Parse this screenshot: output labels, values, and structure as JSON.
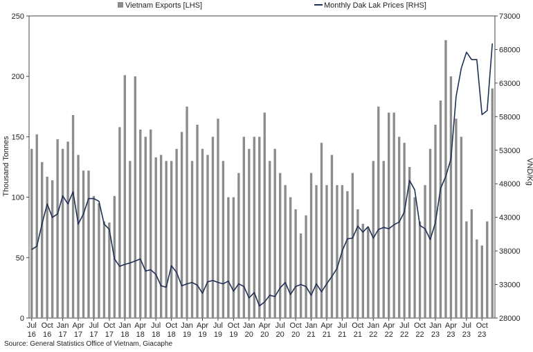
{
  "chart_data": {
    "type": "bar+line",
    "legend": {
      "placement": "top-center",
      "bar_label": "Vietnam Exports [LHS]",
      "line_label": "Monthly Dak Lak Prices [RHS]"
    },
    "y_left": {
      "label": "Thousand Tonnes",
      "min": 0,
      "max": 250,
      "step": 50,
      "ticks": [
        "0",
        "50",
        "100",
        "150",
        "200",
        "250"
      ]
    },
    "y_right": {
      "label": "VND/Kg",
      "min": 28000,
      "max": 73000,
      "step": 5000,
      "ticks": [
        "28000",
        "33000",
        "38000",
        "43000",
        "48000",
        "53000",
        "58000",
        "63000",
        "68000",
        "73000"
      ]
    },
    "x_ticks": [
      {
        "index": 0,
        "month": "Jul",
        "year": "16"
      },
      {
        "index": 3,
        "month": "Oct",
        "year": "16"
      },
      {
        "index": 6,
        "month": "Jan",
        "year": "17"
      },
      {
        "index": 9,
        "month": "Apr",
        "year": "17"
      },
      {
        "index": 12,
        "month": "Jul",
        "year": "17"
      },
      {
        "index": 15,
        "month": "Oct",
        "year": "17"
      },
      {
        "index": 18,
        "month": "Jan",
        "year": "18"
      },
      {
        "index": 21,
        "month": "Apr",
        "year": "18"
      },
      {
        "index": 24,
        "month": "Jul",
        "year": "18"
      },
      {
        "index": 27,
        "month": "Oct",
        "year": "18"
      },
      {
        "index": 30,
        "month": "Jan",
        "year": "19"
      },
      {
        "index": 33,
        "month": "Apr",
        "year": "19"
      },
      {
        "index": 36,
        "month": "Jul",
        "year": "19"
      },
      {
        "index": 39,
        "month": "Oct",
        "year": "19"
      },
      {
        "index": 42,
        "month": "Jan",
        "year": "20"
      },
      {
        "index": 45,
        "month": "Apr",
        "year": "20"
      },
      {
        "index": 48,
        "month": "Jul",
        "year": "20"
      },
      {
        "index": 51,
        "month": "Oct",
        "year": "20"
      },
      {
        "index": 54,
        "month": "Jan",
        "year": "21"
      },
      {
        "index": 57,
        "month": "Apr",
        "year": "21"
      },
      {
        "index": 60,
        "month": "Jul",
        "year": "21"
      },
      {
        "index": 63,
        "month": "Oct",
        "year": "21"
      },
      {
        "index": 66,
        "month": "Jan",
        "year": "22"
      },
      {
        "index": 69,
        "month": "Apr",
        "year": "22"
      },
      {
        "index": 72,
        "month": "Jul",
        "year": "22"
      },
      {
        "index": 75,
        "month": "Oct",
        "year": "22"
      },
      {
        "index": 78,
        "month": "Jan",
        "year": "23"
      },
      {
        "index": 81,
        "month": "Apr",
        "year": "23"
      },
      {
        "index": 84,
        "month": "Jul",
        "year": "23"
      },
      {
        "index": 87,
        "month": "Oct",
        "year": "23"
      }
    ],
    "series": [
      {
        "name": "Vietnam Exports [LHS]",
        "axis": "left",
        "kind": "bar",
        "color": "#8c8c8c",
        "values": [
          140,
          152,
          129,
          117,
          114,
          148,
          140,
          146,
          168,
          135,
          122,
          122,
          101,
          95,
          80,
          79,
          101,
          158,
          201,
          130,
          200,
          156,
          150,
          156,
          133,
          135,
          130,
          130,
          140,
          154,
          175,
          130,
          160,
          140,
          135,
          150,
          165,
          130,
          100,
          100,
          120,
          150,
          140,
          150,
          150,
          170,
          130,
          140,
          120,
          110,
          100,
          90,
          70,
          85,
          120,
          110,
          145,
          110,
          135,
          110,
          110,
          105,
          120,
          90,
          78,
          75,
          130,
          175,
          130,
          170,
          170,
          150,
          145,
          125,
          100,
          80,
          110,
          140,
          160,
          180,
          230,
          200,
          165,
          150,
          80,
          90,
          65,
          60,
          80,
          190
        ]
      },
      {
        "name": "Monthly Dak Lak Prices [RHS]",
        "axis": "right",
        "kind": "line",
        "color": "#1f2f57",
        "values": [
          38200,
          38700,
          42000,
          45000,
          43000,
          43500,
          46200,
          45000,
          46800,
          42000,
          43500,
          45800,
          45800,
          45400,
          42000,
          41200,
          36800,
          35700,
          36000,
          36200,
          36500,
          36800,
          35000,
          35200,
          34500,
          32800,
          32600,
          35800,
          34800,
          32800,
          33100,
          33300,
          32900,
          31700,
          33400,
          33600,
          33300,
          33100,
          33500,
          32000,
          33100,
          32700,
          31000,
          31800,
          29800,
          30400,
          31400,
          31200,
          32500,
          33300,
          31500,
          32700,
          33000,
          32700,
          31400,
          33100,
          31900,
          33100,
          34200,
          35400,
          38000,
          39800,
          39900,
          41700,
          40800,
          41600,
          39900,
          41200,
          41500,
          41300,
          41900,
          42300,
          43800,
          48500,
          47100,
          41800,
          41300,
          39700,
          42200,
          47300,
          49100,
          51700,
          61000,
          65200,
          67600,
          66500,
          66500,
          58300,
          58900,
          68900
        ]
      }
    ]
  },
  "source_text": "Source: General Statistics Office of Vietnam, Giacaphe"
}
